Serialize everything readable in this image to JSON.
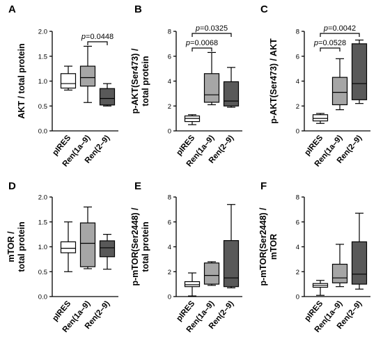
{
  "chart_data": [
    {
      "panel": "A",
      "type": "box",
      "ylabel_lines": [
        "AKT / total protein"
      ],
      "ylim": [
        0,
        2.0
      ],
      "yticks": [
        "0.0",
        "0.5",
        "1.0",
        "1.5",
        "2.0"
      ],
      "categories": [
        "pIRES",
        "Ren(1a–9)",
        "Ren(2–9)"
      ],
      "boxes": [
        {
          "min": 0.82,
          "q1": 0.86,
          "median": 0.95,
          "q3": 1.15,
          "max": 1.3,
          "fill": "#ffffff"
        },
        {
          "min": 0.57,
          "q1": 0.9,
          "median": 1.07,
          "q3": 1.3,
          "max": 1.7,
          "fill": "#a6a6a6"
        },
        {
          "min": 0.5,
          "q1": 0.52,
          "median": 0.65,
          "q3": 0.85,
          "max": 0.95,
          "fill": "#595959"
        }
      ],
      "comparisons": [
        {
          "from": 1,
          "to": 2,
          "label": "p=0.0448"
        }
      ]
    },
    {
      "panel": "B",
      "type": "box",
      "ylabel_lines": [
        "p-AKT(Ser473) /",
        "total protein"
      ],
      "ylim": [
        0,
        8
      ],
      "yticks": [
        "0",
        "2",
        "4",
        "6",
        "8"
      ],
      "categories": [
        "pIRES",
        "Ren(1a–9)",
        "Ren(2–9)"
      ],
      "boxes": [
        {
          "min": 0.5,
          "q1": 0.75,
          "median": 1.0,
          "q3": 1.2,
          "max": 1.3,
          "fill": "#ffffff"
        },
        {
          "min": 2.1,
          "q1": 2.3,
          "median": 2.9,
          "q3": 4.6,
          "max": 6.3,
          "fill": "#a6a6a6"
        },
        {
          "min": 1.9,
          "q1": 2.0,
          "median": 2.4,
          "q3": 3.95,
          "max": 5.1,
          "fill": "#595959"
        }
      ],
      "comparisons": [
        {
          "from": 0,
          "to": 1,
          "label": "p=0.0068"
        },
        {
          "from": 0,
          "to": 2,
          "label": "p=0.0325"
        }
      ]
    },
    {
      "panel": "C",
      "type": "box",
      "ylabel_lines": [
        "p-AKT(Ser473) / AKT"
      ],
      "ylim": [
        0,
        8
      ],
      "yticks": [
        "0",
        "2",
        "4",
        "6",
        "8"
      ],
      "categories": [
        "pIRES",
        "Ren(1a–9)",
        "Ren(2–9)"
      ],
      "boxes": [
        {
          "min": 0.6,
          "q1": 0.8,
          "median": 1.0,
          "q3": 1.3,
          "max": 1.4,
          "fill": "#ffffff"
        },
        {
          "min": 1.7,
          "q1": 2.1,
          "median": 3.1,
          "q3": 4.3,
          "max": 5.8,
          "fill": "#a6a6a6"
        },
        {
          "min": 2.2,
          "q1": 2.5,
          "median": 3.8,
          "q3": 7.0,
          "max": 7.3,
          "fill": "#595959"
        }
      ],
      "comparisons": [
        {
          "from": 0,
          "to": 1,
          "label": "p=0.0528"
        },
        {
          "from": 0,
          "to": 2,
          "label": "p=0.0042"
        }
      ]
    },
    {
      "panel": "D",
      "type": "box",
      "ylabel_lines": [
        "mTOR /",
        "total protein"
      ],
      "ylim": [
        0,
        2.0
      ],
      "yticks": [
        "0.0",
        "0.5",
        "1.0",
        "1.5",
        "2.0"
      ],
      "categories": [
        "pIRES",
        "Ren(1a–9)",
        "Ren(2–9)"
      ],
      "boxes": [
        {
          "min": 0.5,
          "q1": 0.88,
          "median": 0.97,
          "q3": 1.1,
          "max": 1.5,
          "fill": "#ffffff"
        },
        {
          "min": 0.56,
          "q1": 0.6,
          "median": 1.07,
          "q3": 1.48,
          "max": 1.8,
          "fill": "#a6a6a6"
        },
        {
          "min": 0.55,
          "q1": 0.8,
          "median": 0.98,
          "q3": 1.12,
          "max": 1.25,
          "fill": "#595959"
        }
      ],
      "comparisons": []
    },
    {
      "panel": "E",
      "type": "box",
      "ylabel_lines": [
        "p-mTOR(Ser2448) /",
        "total protein"
      ],
      "ylim": [
        0,
        8
      ],
      "yticks": [
        "0",
        "2",
        "4",
        "6",
        "8"
      ],
      "categories": [
        "pIRES",
        "Ren(1a–9)",
        "Ren(2–9)"
      ],
      "boxes": [
        {
          "min": 0.05,
          "q1": 0.8,
          "median": 0.95,
          "q3": 1.2,
          "max": 1.9,
          "fill": "#ffffff"
        },
        {
          "min": 0.9,
          "q1": 1.0,
          "median": 1.7,
          "q3": 2.7,
          "max": 2.8,
          "fill": "#a6a6a6"
        },
        {
          "min": 0.7,
          "q1": 0.8,
          "median": 1.5,
          "q3": 4.5,
          "max": 7.4,
          "fill": "#595959"
        }
      ],
      "comparisons": []
    },
    {
      "panel": "F",
      "type": "box",
      "ylabel_lines": [
        "p-mTOR(Ser2448) /",
        "mTOR"
      ],
      "ylim": [
        0,
        8
      ],
      "yticks": [
        "0",
        "2",
        "4",
        "6",
        "8"
      ],
      "categories": [
        "pIRES",
        "Ren(1a–9)",
        "Ren(2–9)"
      ],
      "boxes": [
        {
          "min": 0.1,
          "q1": 0.75,
          "median": 0.9,
          "q3": 1.05,
          "max": 1.3,
          "fill": "#ffffff"
        },
        {
          "min": 0.8,
          "q1": 1.1,
          "median": 1.5,
          "q3": 2.6,
          "max": 4.2,
          "fill": "#a6a6a6"
        },
        {
          "min": 0.6,
          "q1": 1.0,
          "median": 1.8,
          "q3": 4.4,
          "max": 6.7,
          "fill": "#595959"
        }
      ],
      "comparisons": []
    }
  ]
}
